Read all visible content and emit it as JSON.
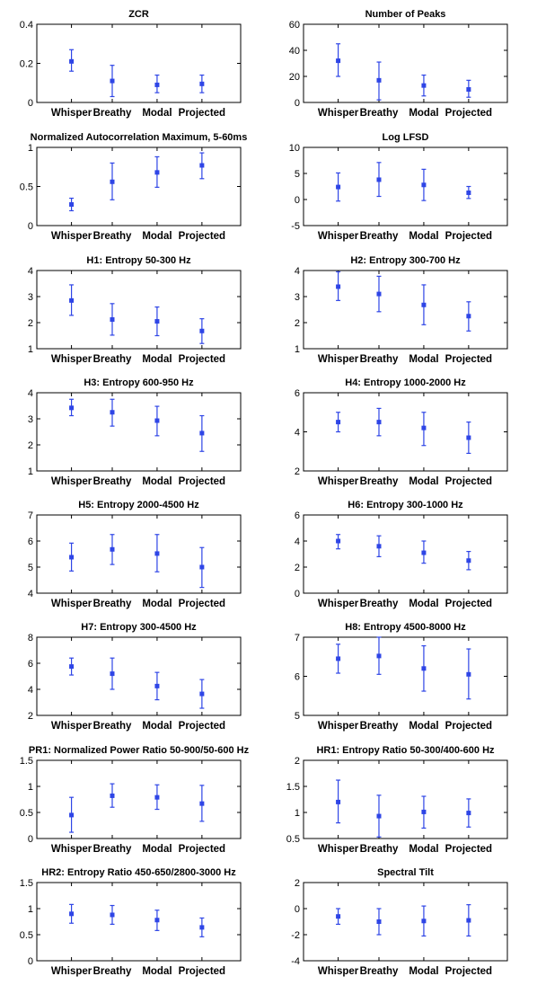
{
  "colors": {
    "marker": "#2e45e6",
    "frame": "#000000",
    "background": "#ffffff"
  },
  "chart_data": [
    {
      "type": "scatter",
      "title": "ZCR",
      "categories": [
        "Whisper",
        "Breathy",
        "Modal",
        "Projected"
      ],
      "ylim": [
        0,
        0.4
      ],
      "yticks": [
        "0",
        "0.2",
        "0.4"
      ],
      "ytick_values": [
        0,
        0.2,
        0.4
      ],
      "series": [
        {
          "values": [
            0.21,
            0.11,
            0.09,
            0.095
          ],
          "err_low": [
            0.16,
            0.03,
            0.05,
            0.05
          ],
          "err_high": [
            0.27,
            0.19,
            0.14,
            0.14
          ]
        }
      ]
    },
    {
      "type": "scatter",
      "title": "Number of Peaks",
      "categories": [
        "Whisper",
        "Breathy",
        "Modal",
        "Projected"
      ],
      "ylim": [
        0,
        60
      ],
      "yticks": [
        "0",
        "20",
        "40",
        "60"
      ],
      "ytick_values": [
        0,
        20,
        40,
        60
      ],
      "series": [
        {
          "values": [
            32,
            17,
            13,
            10
          ],
          "err_low": [
            20,
            2,
            5,
            4
          ],
          "err_high": [
            45,
            31,
            21,
            17
          ]
        }
      ]
    },
    {
      "type": "scatter",
      "title": "Normalized Autocorrelation Maximum, 5-60ms",
      "categories": [
        "Whisper",
        "Breathy",
        "Modal",
        "Projected"
      ],
      "ylim": [
        0,
        1
      ],
      "yticks": [
        "0",
        "0.5",
        "1"
      ],
      "ytick_values": [
        0,
        0.5,
        1
      ],
      "series": [
        {
          "values": [
            0.27,
            0.56,
            0.68,
            0.77
          ],
          "err_low": [
            0.19,
            0.33,
            0.49,
            0.6
          ],
          "err_high": [
            0.35,
            0.8,
            0.88,
            0.93
          ]
        }
      ]
    },
    {
      "type": "scatter",
      "title": "Log LFSD",
      "categories": [
        "Whisper",
        "Breathy",
        "Modal",
        "Projected"
      ],
      "ylim": [
        -5,
        10
      ],
      "yticks": [
        "-5",
        "0",
        "5",
        "10"
      ],
      "ytick_values": [
        -5,
        0,
        5,
        10
      ],
      "series": [
        {
          "values": [
            2.4,
            3.8,
            2.8,
            1.3
          ],
          "err_low": [
            -0.3,
            0.6,
            -0.2,
            0.2
          ],
          "err_high": [
            5.1,
            7.1,
            5.8,
            2.5
          ]
        }
      ]
    },
    {
      "type": "scatter",
      "title": "H1: Entropy 50-300 Hz",
      "categories": [
        "Whisper",
        "Breathy",
        "Modal",
        "Projected"
      ],
      "ylim": [
        1,
        4
      ],
      "yticks": [
        "1",
        "2",
        "3",
        "4"
      ],
      "ytick_values": [
        1,
        2,
        3,
        4
      ],
      "series": [
        {
          "values": [
            2.85,
            2.12,
            2.05,
            1.68
          ],
          "err_low": [
            2.28,
            1.52,
            1.5,
            1.2
          ],
          "err_high": [
            3.45,
            2.73,
            2.6,
            2.15
          ]
        }
      ]
    },
    {
      "type": "scatter",
      "title": "H2: Entropy 300-700 Hz",
      "categories": [
        "Whisper",
        "Breathy",
        "Modal",
        "Projected"
      ],
      "ylim": [
        1,
        4
      ],
      "yticks": [
        "1",
        "2",
        "3",
        "4"
      ],
      "ytick_values": [
        1,
        2,
        3,
        4
      ],
      "series": [
        {
          "values": [
            3.38,
            3.1,
            2.68,
            2.25
          ],
          "err_low": [
            2.85,
            2.42,
            1.92,
            1.68
          ],
          "err_high": [
            3.95,
            3.78,
            3.45,
            2.8
          ]
        }
      ]
    },
    {
      "type": "scatter",
      "title": "H3: Entropy 600-950 Hz",
      "categories": [
        "Whisper",
        "Breathy",
        "Modal",
        "Projected"
      ],
      "ylim": [
        1,
        4
      ],
      "yticks": [
        "1",
        "2",
        "3",
        "4"
      ],
      "ytick_values": [
        1,
        2,
        3,
        4
      ],
      "series": [
        {
          "values": [
            3.42,
            3.25,
            2.93,
            2.45
          ],
          "err_low": [
            3.12,
            2.72,
            2.35,
            1.75
          ],
          "err_high": [
            3.75,
            3.75,
            3.48,
            3.12
          ]
        }
      ]
    },
    {
      "type": "scatter",
      "title": "H4: Entropy 1000-2000 Hz",
      "categories": [
        "Whisper",
        "Breathy",
        "Modal",
        "Projected"
      ],
      "ylim": [
        2,
        6
      ],
      "yticks": [
        "2",
        "4",
        "6"
      ],
      "ytick_values": [
        2,
        4,
        6
      ],
      "series": [
        {
          "values": [
            4.5,
            4.5,
            4.2,
            3.7
          ],
          "err_low": [
            4.0,
            3.8,
            3.3,
            2.9
          ],
          "err_high": [
            5.0,
            5.2,
            5.0,
            4.5
          ]
        }
      ]
    },
    {
      "type": "scatter",
      "title": "H5: Entropy 2000-4500 Hz",
      "categories": [
        "Whisper",
        "Breathy",
        "Modal",
        "Projected"
      ],
      "ylim": [
        4,
        7
      ],
      "yticks": [
        "4",
        "5",
        "6",
        "7"
      ],
      "ytick_values": [
        4,
        5,
        6,
        7
      ],
      "series": [
        {
          "values": [
            5.38,
            5.68,
            5.52,
            5.0
          ],
          "err_low": [
            4.85,
            5.1,
            4.82,
            4.22
          ],
          "err_high": [
            5.92,
            6.25,
            6.25,
            5.75
          ]
        }
      ]
    },
    {
      "type": "scatter",
      "title": "H6: Entropy 300-1000 Hz",
      "categories": [
        "Whisper",
        "Breathy",
        "Modal",
        "Projected"
      ],
      "ylim": [
        0,
        6
      ],
      "yticks": [
        "0",
        "2",
        "4",
        "6"
      ],
      "ytick_values": [
        0,
        2,
        4,
        6
      ],
      "series": [
        {
          "values": [
            4.0,
            3.6,
            3.1,
            2.5
          ],
          "err_low": [
            3.4,
            2.8,
            2.3,
            1.8
          ],
          "err_high": [
            4.5,
            4.4,
            4.0,
            3.2
          ]
        }
      ]
    },
    {
      "type": "scatter",
      "title": "H7: Entropy 300-4500 Hz",
      "categories": [
        "Whisper",
        "Breathy",
        "Modal",
        "Projected"
      ],
      "ylim": [
        2,
        8
      ],
      "yticks": [
        "2",
        "4",
        "6",
        "8"
      ],
      "ytick_values": [
        2,
        4,
        6,
        8
      ],
      "series": [
        {
          "values": [
            5.75,
            5.2,
            4.25,
            3.65
          ],
          "err_low": [
            5.1,
            4.0,
            3.2,
            2.55
          ],
          "err_high": [
            6.4,
            6.4,
            5.3,
            4.75
          ]
        }
      ]
    },
    {
      "type": "scatter",
      "title": "H8: Entropy 4500-8000 Hz",
      "categories": [
        "Whisper",
        "Breathy",
        "Modal",
        "Projected"
      ],
      "ylim": [
        5,
        7
      ],
      "yticks": [
        "5",
        "6",
        "7"
      ],
      "ytick_values": [
        5,
        6,
        7
      ],
      "series": [
        {
          "values": [
            6.45,
            6.52,
            6.2,
            6.05
          ],
          "err_low": [
            6.08,
            6.05,
            5.62,
            5.42
          ],
          "err_high": [
            6.82,
            7.0,
            6.78,
            6.7
          ]
        }
      ]
    },
    {
      "type": "scatter",
      "title": "PR1: Normalized Power Ratio 50-900/50-600 Hz",
      "categories": [
        "Whisper",
        "Breathy",
        "Modal",
        "Projected"
      ],
      "ylim": [
        0,
        1.5
      ],
      "yticks": [
        "0",
        "0.5",
        "1",
        "1.5"
      ],
      "ytick_values": [
        0,
        0.5,
        1,
        1.5
      ],
      "series": [
        {
          "values": [
            0.45,
            0.82,
            0.79,
            0.67
          ],
          "err_low": [
            0.12,
            0.6,
            0.56,
            0.33
          ],
          "err_high": [
            0.79,
            1.05,
            1.03,
            1.02
          ]
        }
      ]
    },
    {
      "type": "scatter",
      "title": "HR1: Entropy Ratio 50-300/400-600 Hz",
      "categories": [
        "Whisper",
        "Breathy",
        "Modal",
        "Projected"
      ],
      "ylim": [
        0.5,
        2
      ],
      "yticks": [
        "0.5",
        "1",
        "1.5",
        "2"
      ],
      "ytick_values": [
        0.5,
        1,
        1.5,
        2
      ],
      "series": [
        {
          "values": [
            1.2,
            0.93,
            1.01,
            0.99
          ],
          "err_low": [
            0.8,
            0.53,
            0.7,
            0.72
          ],
          "err_high": [
            1.62,
            1.33,
            1.31,
            1.26
          ]
        }
      ]
    },
    {
      "type": "scatter",
      "title": "HR2: Entropy Ratio 450-650/2800-3000 Hz",
      "categories": [
        "Whisper",
        "Breathy",
        "Modal",
        "Projected"
      ],
      "ylim": [
        0,
        1.5
      ],
      "yticks": [
        "0",
        "0.5",
        "1",
        "1.5"
      ],
      "ytick_values": [
        0,
        0.5,
        1,
        1.5
      ],
      "series": [
        {
          "values": [
            0.9,
            0.88,
            0.78,
            0.64
          ],
          "err_low": [
            0.72,
            0.7,
            0.58,
            0.46
          ],
          "err_high": [
            1.08,
            1.06,
            0.97,
            0.82
          ]
        }
      ]
    },
    {
      "type": "scatter",
      "title": "Spectral Tilt",
      "categories": [
        "Whisper",
        "Breathy",
        "Modal",
        "Projected"
      ],
      "ylim": [
        -4,
        2
      ],
      "yticks": [
        "-4",
        "-2",
        "0",
        "2"
      ],
      "ytick_values": [
        -4,
        -2,
        0,
        2
      ],
      "series": [
        {
          "values": [
            -0.6,
            -1.0,
            -0.95,
            -0.9
          ],
          "err_low": [
            -1.2,
            -2.0,
            -2.1,
            -2.1
          ],
          "err_high": [
            0.0,
            0.0,
            0.2,
            0.3
          ]
        }
      ]
    }
  ]
}
